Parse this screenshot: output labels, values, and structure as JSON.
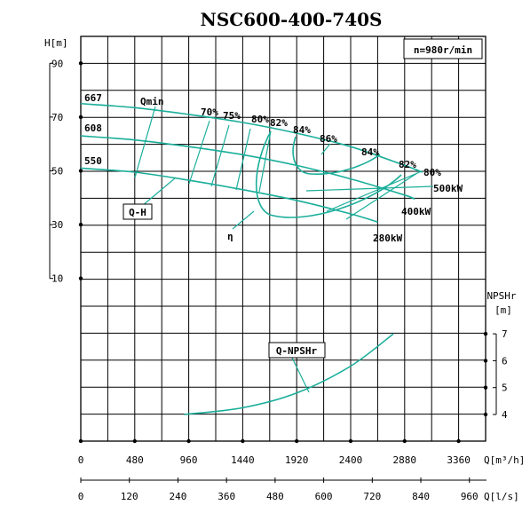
{
  "chart_data": {
    "type": "line",
    "title": "NSC600-400-740S",
    "speed_note": "n=980r/min",
    "xlim": [
      0,
      3600
    ],
    "xlabel_q": "Q[m³/h]",
    "xlabel_ql": "Q[l/s]",
    "x_ticks_q": [
      "0",
      "480",
      "960",
      "1440",
      "1920",
      "2400",
      "2880",
      "3360"
    ],
    "x_ticks_l": [
      "0",
      "120",
      "240",
      "360",
      "480",
      "600",
      "720",
      "840",
      "960"
    ],
    "ylim_h": [
      0,
      100
    ],
    "ylabel_h": "H[m]",
    "y_ticks_h": [
      "90",
      "70",
      "50",
      "30",
      "10"
    ],
    "ylabel_npsh": "NPSHr",
    "ylabel_npsh_unit": "[m]",
    "y_ticks_npsh": [
      "7",
      "6",
      "5",
      "4"
    ],
    "diameter_labels": [
      "667",
      "608",
      "550"
    ],
    "series": [
      {
        "x": [
          0,
          480,
          960,
          1440,
          1920,
          2400,
          2880,
          3040
        ],
        "y": [
          75,
          73.5,
          71,
          68,
          64,
          59,
          52,
          49.5
        ]
      },
      {
        "x": [
          0,
          480,
          960,
          1440,
          1920,
          2400,
          2880,
          2970
        ],
        "y": [
          63,
          61.5,
          59,
          56,
          52,
          47,
          41,
          39.5
        ]
      },
      {
        "x": [
          0,
          480,
          960,
          1440,
          1920,
          2400,
          2640
        ],
        "y": [
          51,
          49.5,
          46.5,
          43,
          39,
          34,
          31
        ]
      },
      {
        "name": "Q-NPSHr",
        "x": [
          920,
          1440,
          1920,
          2400,
          2780
        ],
        "y": [
          4,
          4.25,
          4.8,
          5.8,
          7
        ]
      }
    ],
    "efficiency_labels": [
      "70%",
      "75%",
      "80%",
      "82%",
      "84%",
      "86%",
      "84%",
      "82%",
      "80%"
    ],
    "power_labels": [
      "500kW",
      "400kW",
      "280kW"
    ],
    "curve_labels": [
      "Qmin",
      "Q-H",
      "η",
      "Q-NPSHr"
    ]
  }
}
